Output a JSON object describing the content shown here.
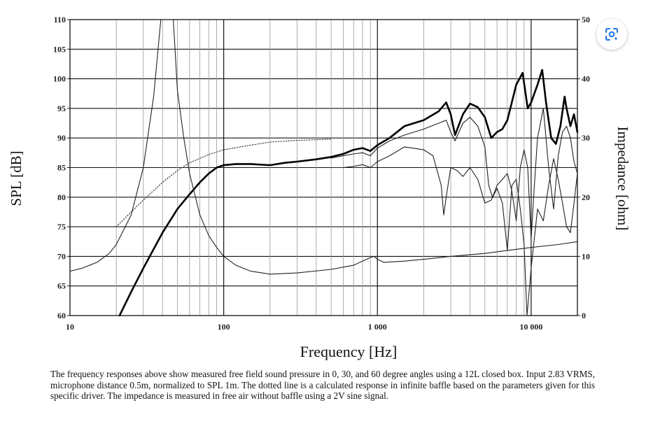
{
  "chart_data": {
    "type": "line",
    "title": "",
    "xlabel": "Frequency [Hz]",
    "ylabel": "SPL [dB]",
    "y2label": "Impedance [ohm]",
    "xscale": "log",
    "xlim": [
      10,
      20000
    ],
    "ylim": [
      60,
      110
    ],
    "y2lim": [
      0,
      50
    ],
    "grid": true,
    "x_tick_labels": [
      "10",
      "100",
      "1 000",
      "10 000"
    ],
    "x_ticks": [
      10,
      100,
      1000,
      10000
    ],
    "y_ticks": [
      60,
      65,
      70,
      75,
      80,
      85,
      90,
      95,
      100,
      105,
      110
    ],
    "y2_ticks": [
      0,
      10,
      20,
      30,
      40,
      50
    ],
    "series": [
      {
        "style": "bold",
        "axis": "left",
        "points": [
          [
            21,
            60
          ],
          [
            25,
            64
          ],
          [
            30,
            68
          ],
          [
            40,
            74
          ],
          [
            50,
            78
          ],
          [
            60,
            80.5
          ],
          [
            70,
            82.5
          ],
          [
            80,
            84
          ],
          [
            90,
            85
          ],
          [
            100,
            85.4
          ],
          [
            120,
            85.6
          ],
          [
            150,
            85.6
          ],
          [
            200,
            85.4
          ],
          [
            250,
            85.8
          ],
          [
            300,
            86
          ],
          [
            400,
            86.4
          ],
          [
            500,
            86.8
          ],
          [
            600,
            87.3
          ],
          [
            700,
            88
          ],
          [
            800,
            88.3
          ],
          [
            900,
            87.8
          ],
          [
            1000,
            88.8
          ],
          [
            1200,
            90
          ],
          [
            1500,
            92
          ],
          [
            2000,
            93
          ],
          [
            2500,
            94.5
          ],
          [
            2800,
            96
          ],
          [
            3000,
            94
          ],
          [
            3200,
            90.5
          ],
          [
            3600,
            94
          ],
          [
            4000,
            95.8
          ],
          [
            4500,
            95.2
          ],
          [
            5000,
            93.5
          ],
          [
            5500,
            90
          ],
          [
            6000,
            91
          ],
          [
            6500,
            91.5
          ],
          [
            7000,
            93
          ],
          [
            8000,
            99
          ],
          [
            8800,
            101
          ],
          [
            9500,
            95
          ],
          [
            10000,
            96
          ],
          [
            11000,
            99
          ],
          [
            11800,
            101.5
          ],
          [
            12500,
            96
          ],
          [
            13500,
            90
          ],
          [
            14500,
            89
          ],
          [
            15500,
            92
          ],
          [
            16500,
            97
          ],
          [
            17000,
            95
          ],
          [
            18000,
            92
          ],
          [
            19000,
            94
          ],
          [
            20000,
            91
          ]
        ]
      },
      {
        "style": "thin",
        "axis": "left",
        "points": [
          [
            500,
            86.6
          ],
          [
            600,
            87
          ],
          [
            700,
            87.3
          ],
          [
            800,
            87.5
          ],
          [
            900,
            87
          ],
          [
            1000,
            88.3
          ],
          [
            1200,
            89.5
          ],
          [
            1500,
            90.5
          ],
          [
            2000,
            91.5
          ],
          [
            2500,
            92.5
          ],
          [
            2800,
            93
          ],
          [
            3000,
            91
          ],
          [
            3200,
            89.5
          ],
          [
            3600,
            92.5
          ],
          [
            4000,
            93.5
          ],
          [
            4500,
            92
          ],
          [
            5000,
            88.5
          ],
          [
            5300,
            82
          ],
          [
            5600,
            80
          ],
          [
            6000,
            82
          ],
          [
            6500,
            83
          ],
          [
            7000,
            84
          ],
          [
            7500,
            81
          ],
          [
            8000,
            76
          ],
          [
            8500,
            85
          ],
          [
            9000,
            88
          ],
          [
            9500,
            85
          ],
          [
            10000,
            73
          ],
          [
            10500,
            82
          ],
          [
            11000,
            90
          ],
          [
            12000,
            95
          ],
          [
            13000,
            85
          ],
          [
            14000,
            78
          ],
          [
            15000,
            87
          ],
          [
            16000,
            91
          ],
          [
            17000,
            92
          ],
          [
            18000,
            90
          ],
          [
            19000,
            86
          ],
          [
            20000,
            84
          ]
        ]
      },
      {
        "style": "thin",
        "axis": "left",
        "points": [
          [
            500,
            85
          ],
          [
            600,
            85
          ],
          [
            700,
            85.2
          ],
          [
            800,
            85.5
          ],
          [
            900,
            85
          ],
          [
            1000,
            86
          ],
          [
            1200,
            87
          ],
          [
            1500,
            88.5
          ],
          [
            2000,
            88
          ],
          [
            2300,
            87
          ],
          [
            2600,
            82
          ],
          [
            2700,
            77
          ],
          [
            2800,
            80
          ],
          [
            3000,
            85
          ],
          [
            3300,
            84.5
          ],
          [
            3600,
            83.5
          ],
          [
            4000,
            85
          ],
          [
            4500,
            83
          ],
          [
            5000,
            79
          ],
          [
            5500,
            79.5
          ],
          [
            6000,
            81.5
          ],
          [
            6500,
            79
          ],
          [
            7000,
            71
          ],
          [
            7500,
            82
          ],
          [
            8000,
            83
          ],
          [
            8500,
            78
          ],
          [
            9000,
            72
          ],
          [
            9400,
            60
          ],
          [
            10000,
            68
          ],
          [
            11000,
            78
          ],
          [
            12000,
            76
          ],
          [
            13000,
            82
          ],
          [
            14000,
            86.5
          ],
          [
            15000,
            83
          ],
          [
            16000,
            79
          ],
          [
            17000,
            75
          ],
          [
            18000,
            74
          ],
          [
            19000,
            79
          ],
          [
            20000,
            84
          ]
        ]
      },
      {
        "style": "dotted",
        "axis": "left",
        "points": [
          [
            20,
            75
          ],
          [
            25,
            77.5
          ],
          [
            30,
            79.5
          ],
          [
            40,
            82.5
          ],
          [
            50,
            84.5
          ],
          [
            60,
            85.8
          ],
          [
            80,
            87.2
          ],
          [
            100,
            88
          ],
          [
            150,
            88.8
          ],
          [
            200,
            89.3
          ],
          [
            300,
            89.6
          ],
          [
            500,
            89.8
          ]
        ]
      },
      {
        "style": "thin",
        "axis": "right",
        "points": [
          [
            10,
            7.5
          ],
          [
            12,
            8
          ],
          [
            15,
            9
          ],
          [
            18,
            10.5
          ],
          [
            20,
            12
          ],
          [
            25,
            17
          ],
          [
            30,
            25
          ],
          [
            35,
            37
          ],
          [
            39,
            50
          ],
          [
            47,
            50
          ],
          [
            50,
            38
          ],
          [
            55,
            30
          ],
          [
            60,
            24
          ],
          [
            70,
            17
          ],
          [
            80,
            13.5
          ],
          [
            90,
            11.5
          ],
          [
            100,
            10
          ],
          [
            120,
            8.5
          ],
          [
            150,
            7.5
          ],
          [
            200,
            7
          ],
          [
            300,
            7.2
          ],
          [
            500,
            7.8
          ],
          [
            700,
            8.5
          ],
          [
            800,
            9.2
          ],
          [
            900,
            9.8
          ],
          [
            950,
            10
          ],
          [
            1000,
            9.5
          ],
          [
            1100,
            9
          ],
          [
            1500,
            9.2
          ],
          [
            2000,
            9.5
          ],
          [
            3000,
            10
          ],
          [
            5000,
            10.5
          ],
          [
            7000,
            11
          ],
          [
            10000,
            11.5
          ],
          [
            15000,
            12
          ],
          [
            20000,
            12.5
          ]
        ]
      }
    ]
  },
  "caption": "The frequency responses above show measured free field sound pressure in 0, 30, and 60 degree angles using a 12L closed box. Input 2.83 VRMS, microphone distance 0.5m, normalized to SPL 1m. The dotted line is a calculated response in infinite baffle based on the parameters given for this specific driver. The impedance is measured in free air without baffle using a 2V sine signal.",
  "lens_button": {
    "icon": "lens-icon"
  }
}
